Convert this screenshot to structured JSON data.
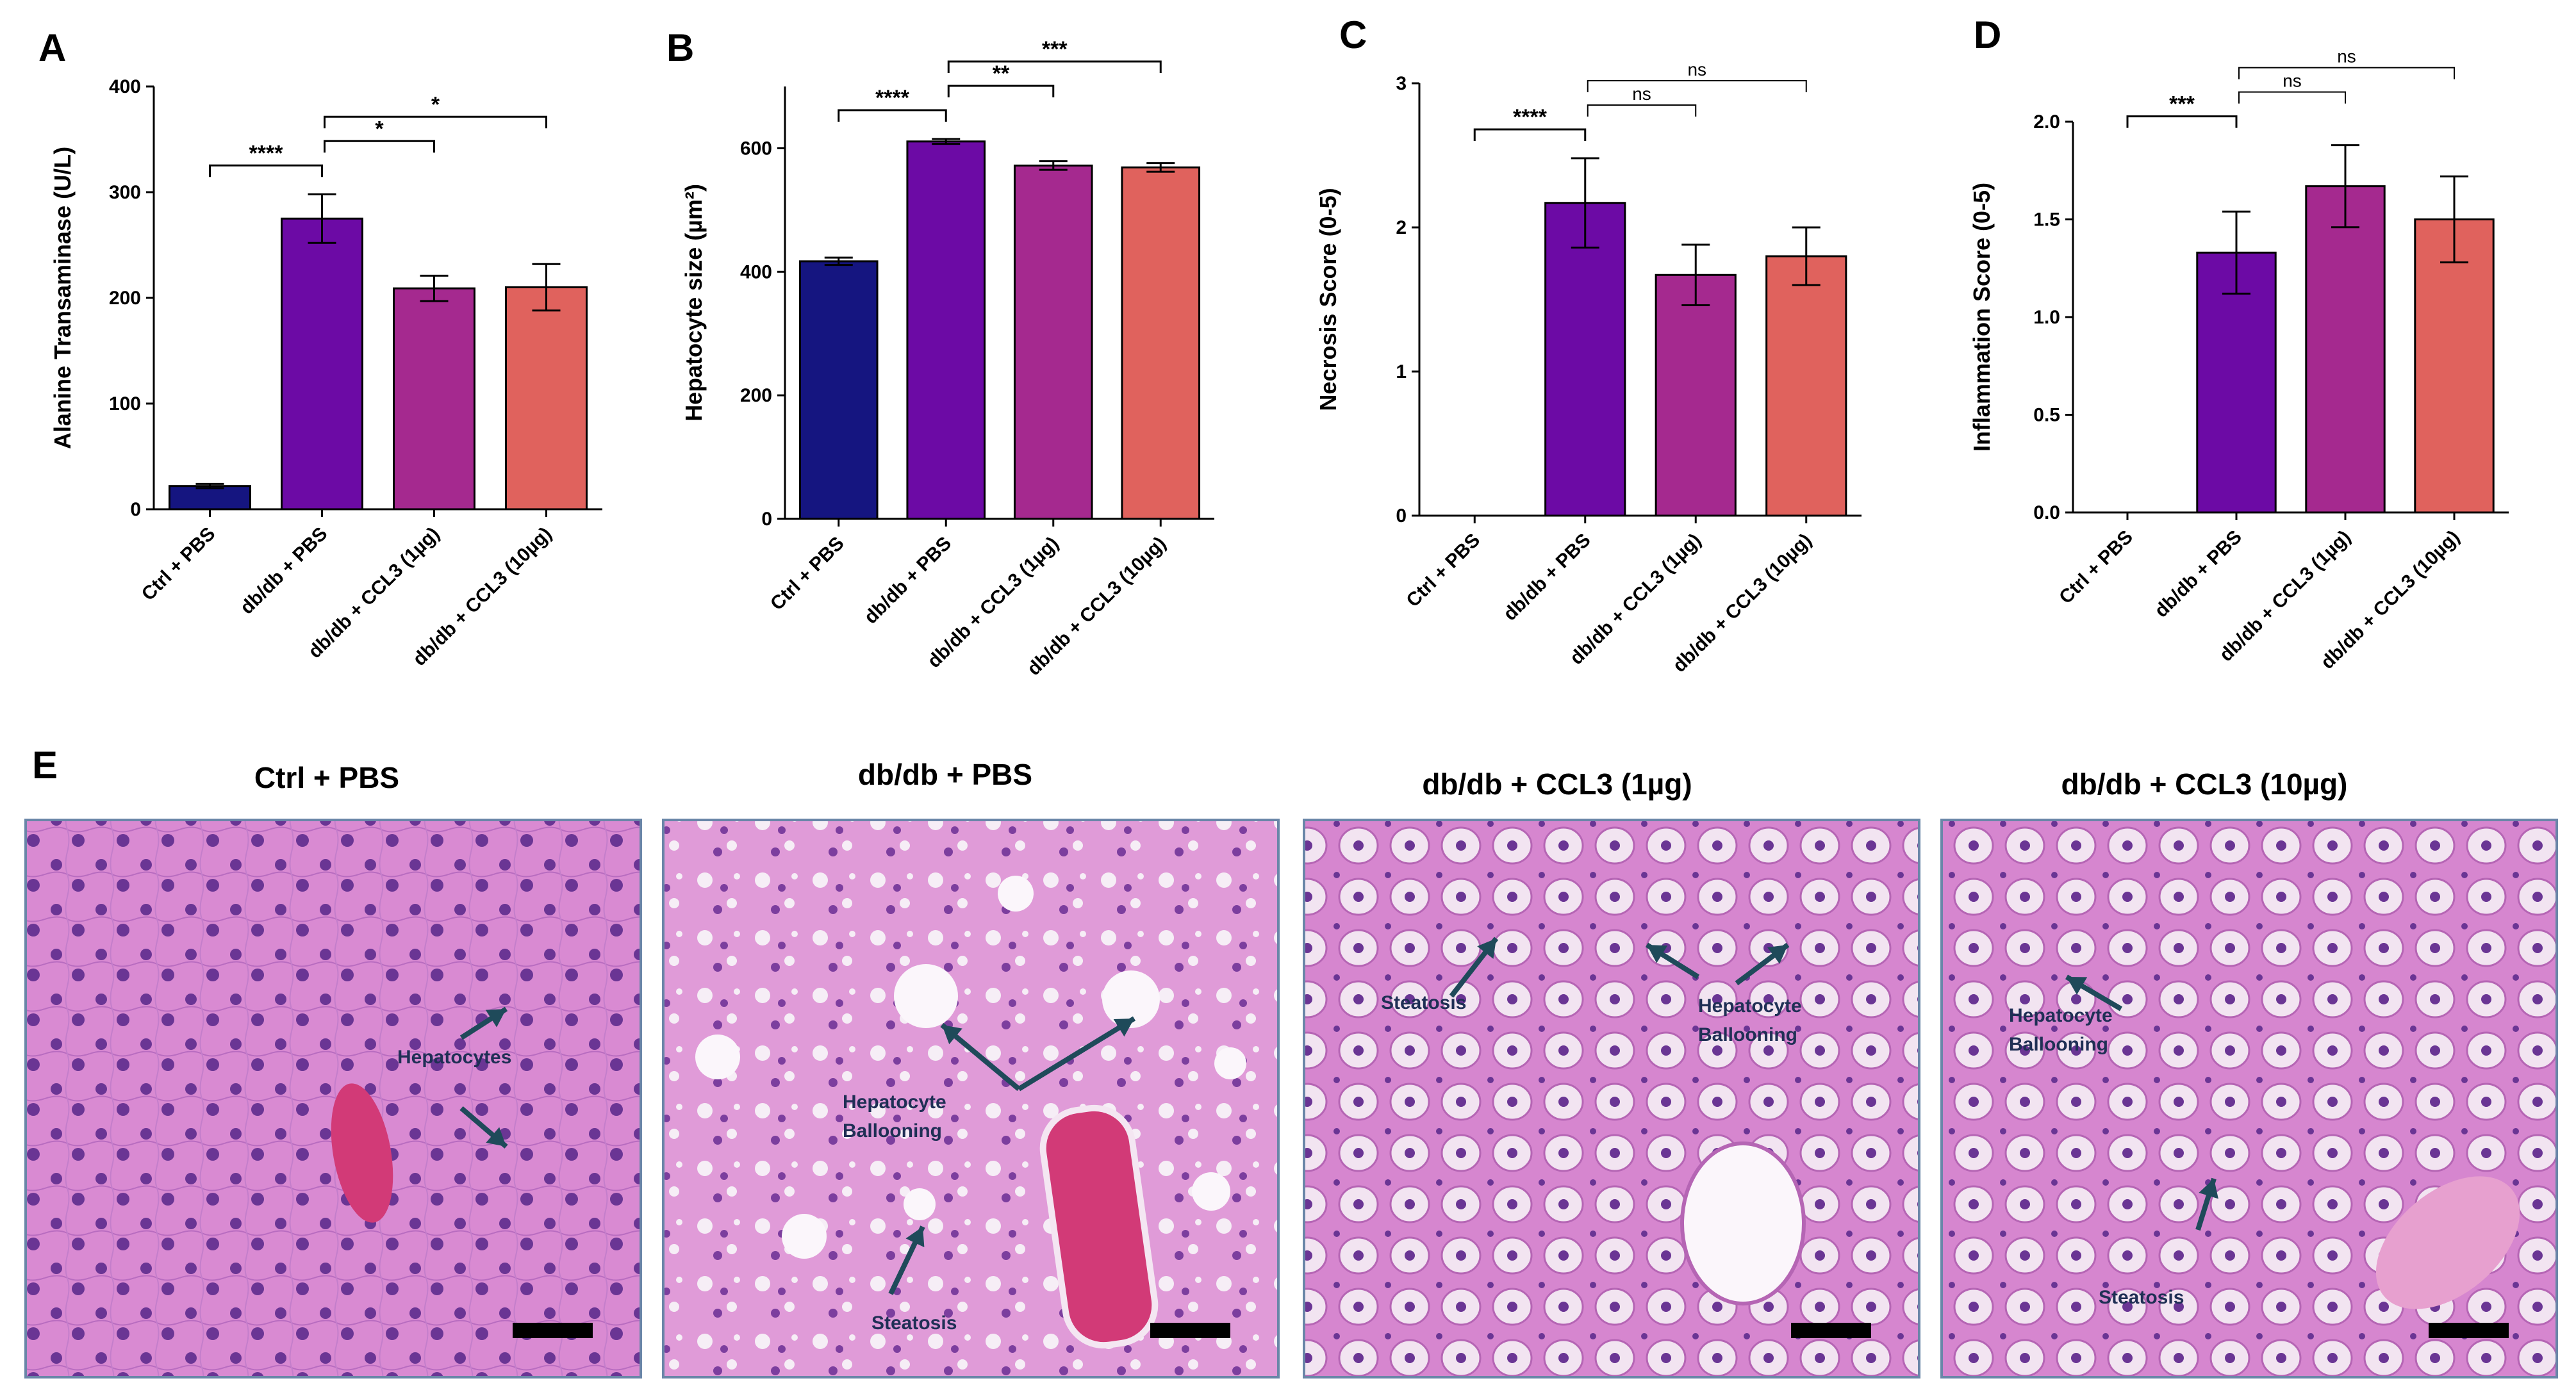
{
  "panel_letters": [
    "A",
    "B",
    "C",
    "D",
    "E"
  ],
  "categories": [
    "Ctrl + PBS",
    "db/db + PBS",
    "db/db + CCL3 (1µg)",
    "db/db + CCL3 (10µg)"
  ],
  "bar_colors": [
    "#151580",
    "#6c0aa5",
    "#a5298f",
    "#e0625d"
  ],
  "chart_data": [
    {
      "type": "bar",
      "panel": "A",
      "categories": [
        "Ctrl + PBS",
        "db/db + PBS",
        "db/db + CCL3 (1µg)",
        "db/db + CCL3 (10µg)"
      ],
      "values": [
        22,
        275,
        209,
        210
      ],
      "errors": [
        2,
        23,
        12,
        22
      ],
      "ylabel": "Alanine Transaminase (U/L)",
      "ylim": [
        0,
        400
      ],
      "yticks": [
        "0",
        "100",
        "200",
        "300",
        "400"
      ],
      "comparisons": [
        {
          "from": 0,
          "to": 1,
          "label": "****"
        },
        {
          "from": 1,
          "to": 2,
          "label": "*"
        },
        {
          "from": 1,
          "to": 3,
          "label": "*"
        }
      ]
    },
    {
      "type": "bar",
      "panel": "B",
      "categories": [
        "Ctrl + PBS",
        "db/db + PBS",
        "db/db + CCL3 (1µg)",
        "db/db + CCL3 (10µg)"
      ],
      "values": [
        417,
        611,
        572,
        569
      ],
      "errors": [
        6,
        4,
        7,
        7
      ],
      "ylabel": "Hepatocyte size (µm²)",
      "ylim": [
        0,
        700
      ],
      "yticks": [
        "0",
        "200",
        "400",
        "600"
      ],
      "comparisons": [
        {
          "from": 0,
          "to": 1,
          "label": "****"
        },
        {
          "from": 1,
          "to": 2,
          "label": "**"
        },
        {
          "from": 1,
          "to": 3,
          "label": "***"
        }
      ]
    },
    {
      "type": "bar",
      "panel": "C",
      "categories": [
        "Ctrl + PBS",
        "db/db + PBS",
        "db/db + CCL3 (1µg)",
        "db/db + CCL3 (10µg)"
      ],
      "values": [
        0,
        2.17,
        1.67,
        1.8
      ],
      "errors": [
        0,
        0.31,
        0.21,
        0.2
      ],
      "ylabel": "Necrosis Score (0-5)",
      "ylim": [
        0,
        3
      ],
      "yticks": [
        "0",
        "1",
        "2",
        "3"
      ],
      "comparisons": [
        {
          "from": 0,
          "to": 1,
          "label": "****"
        },
        {
          "from": 1,
          "to": 2,
          "label": "ns"
        },
        {
          "from": 1,
          "to": 3,
          "label": "ns"
        }
      ]
    },
    {
      "type": "bar",
      "panel": "D",
      "categories": [
        "Ctrl + PBS",
        "db/db + PBS",
        "db/db + CCL3 (1µg)",
        "db/db + CCL3 (10µg)"
      ],
      "values": [
        0,
        1.33,
        1.67,
        1.5
      ],
      "errors": [
        0,
        0.21,
        0.21,
        0.22
      ],
      "ylabel": "Inflammation Score (0-5)",
      "ylim": [
        0,
        2.0
      ],
      "yticks": [
        "0.0",
        "0.5",
        "1.0",
        "1.5",
        "2.0"
      ],
      "comparisons": [
        {
          "from": 0,
          "to": 1,
          "label": "***"
        },
        {
          "from": 1,
          "to": 2,
          "label": "ns"
        },
        {
          "from": 1,
          "to": 3,
          "label": "ns"
        }
      ]
    }
  ],
  "histology": {
    "titles": [
      "Ctrl + PBS",
      "db/db + PBS",
      "db/db + CCL3 (1µg)",
      "db/db + CCL3 (10µg)"
    ],
    "annotations": [
      [
        "Hepatocytes"
      ],
      [
        "Hepatocyte",
        "Ballooning",
        "Steatosis"
      ],
      [
        "Steatosis",
        "Hepatocyte",
        "Ballooning"
      ],
      [
        "Hepatocyte",
        "Ballooning",
        "Steatosis"
      ]
    ],
    "colors": {
      "tissue": "#d98ad2",
      "nuclei": "#5b2f86",
      "vessel": "#d23a77",
      "arrow": "#1f4a5a"
    }
  }
}
